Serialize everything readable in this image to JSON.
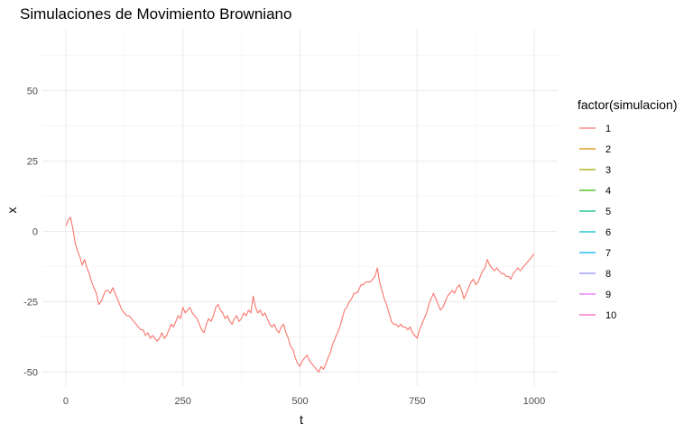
{
  "chart_data": {
    "type": "line",
    "title": "Simulaciones de Movimiento Browniano",
    "xlabel": "t",
    "ylabel": "x",
    "xlim": [
      -50,
      1050
    ],
    "ylim": [
      -55,
      72
    ],
    "x_ticks": [
      0,
      250,
      500,
      750,
      1000
    ],
    "x_tick_labels": [
      "0",
      "250",
      "500",
      "750",
      "1000"
    ],
    "y_ticks": [
      -50,
      -25,
      0,
      25,
      50
    ],
    "y_tick_labels": [
      "-50",
      "-25",
      "0",
      "25",
      "50"
    ],
    "grid": true,
    "legend": {
      "title": "factor(simulacion)",
      "placement": "right",
      "entries": [
        "1",
        "2",
        "3",
        "4",
        "5",
        "6",
        "7",
        "8",
        "9",
        "10"
      ],
      "colors": [
        "#F8766D",
        "#D89000",
        "#A3A500",
        "#39B600",
        "#00BF7D",
        "#00BFC4",
        "#00B0F6",
        "#9590FF",
        "#E76BF3",
        "#FF62BC"
      ]
    },
    "series": [
      {
        "name": "1",
        "color": "#F8766D",
        "x": [
          0,
          5,
          10,
          15,
          20,
          25,
          30,
          35,
          40,
          45,
          50,
          55,
          60,
          65,
          70,
          75,
          80,
          85,
          90,
          95,
          100,
          105,
          110,
          115,
          120,
          125,
          130,
          135,
          140,
          145,
          150,
          155,
          160,
          165,
          170,
          175,
          180,
          185,
          190,
          195,
          200,
          205,
          210,
          215,
          220,
          225,
          230,
          235,
          240,
          245,
          250,
          255,
          260,
          265,
          270,
          275,
          280,
          285,
          290,
          295,
          300,
          305,
          310,
          315,
          320,
          325,
          330,
          335,
          340,
          345,
          350,
          355,
          360,
          365,
          370,
          375,
          380,
          385,
          390,
          395,
          400,
          405,
          410,
          415,
          420,
          425,
          430,
          435,
          440,
          445,
          450,
          455,
          460,
          465,
          470,
          475,
          480,
          485,
          490,
          495,
          500,
          505,
          510,
          515,
          520,
          525,
          530,
          535,
          540,
          545,
          550,
          555,
          560,
          565,
          570,
          575,
          580,
          585,
          590,
          595,
          600,
          605,
          610,
          615,
          620,
          625,
          630,
          635,
          640,
          645,
          650,
          655,
          660,
          665,
          670,
          675,
          680,
          685,
          690,
          695,
          700,
          705,
          710,
          715,
          720,
          725,
          730,
          735,
          740,
          745,
          750,
          755,
          760,
          765,
          770,
          775,
          780,
          785,
          790,
          795,
          800,
          805,
          810,
          815,
          820,
          825,
          830,
          835,
          840,
          845,
          850,
          855,
          860,
          865,
          870,
          875,
          880,
          885,
          890,
          895,
          900,
          905,
          910,
          915,
          920,
          925,
          930,
          935,
          940,
          945,
          950,
          955,
          960,
          965,
          970,
          975,
          980,
          985,
          990,
          995,
          1000
        ],
        "values": [
          2,
          4,
          5,
          1,
          -4,
          -7,
          -9,
          -12,
          -10,
          -13,
          -15,
          -18,
          -20,
          -22,
          -26,
          -25,
          -23,
          -21,
          -21,
          -22,
          -20,
          -22,
          -24,
          -26,
          -28,
          -29,
          -30,
          -30,
          -31,
          -32,
          -33,
          -34,
          -35,
          -35,
          -37,
          -36,
          -38,
          -37,
          -38,
          -39,
          -38,
          -36,
          -38,
          -37,
          -35,
          -33,
          -34,
          -32,
          -30,
          -31,
          -27,
          -29,
          -28,
          -27,
          -29,
          -30,
          -31,
          -33,
          -35,
          -36,
          -33,
          -31,
          -32,
          -30,
          -27,
          -26,
          -28,
          -29,
          -31,
          -30,
          -32,
          -33,
          -31,
          -30,
          -32,
          -31,
          -29,
          -30,
          -28,
          -29,
          -23,
          -27,
          -29,
          -28,
          -30,
          -29,
          -31,
          -33,
          -34,
          -33,
          -35,
          -36,
          -34,
          -33,
          -36,
          -38,
          -41,
          -42,
          -45,
          -47,
          -48,
          -46,
          -45,
          -44,
          -46,
          -47,
          -48,
          -49,
          -50,
          -48,
          -49,
          -47,
          -45,
          -43,
          -40,
          -38,
          -36,
          -34,
          -31,
          -28,
          -27,
          -25,
          -24,
          -22,
          -22,
          -21,
          -19,
          -19,
          -18,
          -18,
          -18,
          -17,
          -16,
          -13,
          -18,
          -21,
          -24,
          -26,
          -29,
          -32,
          -33,
          -33,
          -34,
          -33,
          -34,
          -34,
          -35,
          -34,
          -36,
          -37,
          -38,
          -35,
          -33,
          -31,
          -29,
          -26,
          -24,
          -22,
          -24,
          -26,
          -28,
          -27,
          -25,
          -23,
          -22,
          -21,
          -22,
          -20,
          -19,
          -21,
          -24,
          -22,
          -20,
          -18,
          -17,
          -19,
          -18,
          -16,
          -14,
          -13,
          -10,
          -12,
          -13,
          -14,
          -13,
          -14,
          -15,
          -15,
          -16,
          -16,
          -17,
          -15,
          -14,
          -13,
          -14,
          -13,
          -12,
          -11,
          -10,
          -9,
          -8
        ]
      }
    ]
  }
}
